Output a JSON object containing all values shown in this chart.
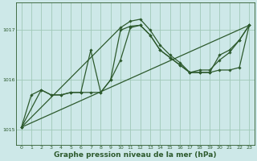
{
  "background_color": "#cde8e8",
  "grid_color": "#a0c8b8",
  "line_color": "#2d5a2d",
  "xlabel": "Graphe pression niveau de la mer (hPa)",
  "xlabel_fontsize": 6.5,
  "xlim": [
    -0.5,
    23.5
  ],
  "ylim": [
    1014.7,
    1017.55
  ],
  "yticks": [
    1015,
    1016,
    1017
  ],
  "xticks": [
    0,
    1,
    2,
    3,
    4,
    5,
    6,
    7,
    8,
    9,
    10,
    11,
    12,
    13,
    14,
    15,
    16,
    17,
    18,
    19,
    20,
    21,
    22,
    23
  ],
  "series1_x": [
    0,
    1,
    2,
    3,
    4,
    5,
    6,
    7,
    8,
    9,
    10,
    11,
    12,
    13,
    14,
    15,
    16,
    17,
    18,
    19,
    20,
    21,
    22,
    23
  ],
  "series1_y": [
    1015.05,
    1015.7,
    1015.8,
    1015.7,
    1015.7,
    1015.75,
    1015.75,
    1015.75,
    1015.75,
    1016.0,
    1016.4,
    1017.05,
    1017.1,
    1016.9,
    1016.6,
    1016.45,
    1016.3,
    1016.15,
    1016.15,
    1016.15,
    1016.2,
    1016.2,
    1016.25,
    1017.1
  ],
  "series2_x": [
    0,
    2,
    3,
    4,
    5,
    6,
    7,
    8,
    9,
    10,
    11,
    12,
    13,
    14,
    15,
    16,
    17,
    18,
    19,
    20,
    21,
    22,
    23
  ],
  "series2_y": [
    1015.05,
    1015.8,
    1015.7,
    1015.7,
    1015.75,
    1015.75,
    1016.6,
    1015.75,
    1016.0,
    1017.0,
    1017.08,
    1017.1,
    1016.9,
    1016.6,
    1016.45,
    1016.3,
    1016.15,
    1016.15,
    1016.15,
    1016.5,
    1016.6,
    1016.8,
    1017.1
  ],
  "series3_x": [
    0,
    10,
    11,
    12,
    13,
    14,
    15,
    16,
    17,
    18,
    19,
    20,
    21,
    22,
    23
  ],
  "series3_y": [
    1015.05,
    1017.05,
    1017.18,
    1017.22,
    1017.0,
    1016.7,
    1016.5,
    1016.35,
    1016.15,
    1016.2,
    1016.2,
    1016.4,
    1016.55,
    1016.8,
    1017.1
  ],
  "series4_x": [
    0,
    23
  ],
  "series4_y": [
    1015.05,
    1017.1
  ]
}
